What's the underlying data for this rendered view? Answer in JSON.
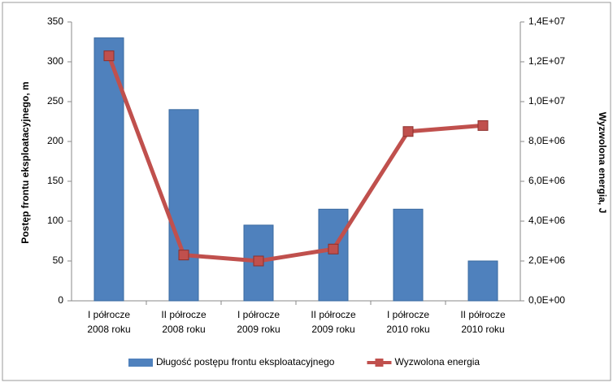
{
  "chart_data": {
    "type": "bar",
    "categories": [
      [
        "I półrocze",
        "2008 roku"
      ],
      [
        "II półrocze",
        "2008 roku"
      ],
      [
        "I półrocze",
        "2009 roku"
      ],
      [
        "II półrocze",
        "2009 roku"
      ],
      [
        "I półrocze",
        "2010 roku"
      ],
      [
        "II półrocze",
        "2010 roku"
      ]
    ],
    "series": [
      {
        "name": "Długość postępu frontu eksploatacyjnego",
        "color": "#4f81bd",
        "type": "bar",
        "axis": "y",
        "values": [
          330,
          240,
          95,
          115,
          115,
          50
        ]
      },
      {
        "name": "Wyzwolona energia",
        "color": "#c0504d",
        "type": "line",
        "axis": "y2",
        "values": [
          12300000,
          2300000,
          2000000,
          2600000,
          8500000,
          8800000
        ]
      }
    ],
    "y_label": "Postęp frontu eksploatacyjnego, m",
    "y2_label": "Wyzwolona energia, J",
    "ylim": [
      0,
      350
    ],
    "yticks": [
      0,
      50,
      100,
      150,
      200,
      250,
      300,
      350
    ],
    "y2lim": [
      0,
      14000000
    ],
    "y2ticks": [
      {
        "value": 0,
        "label": "0,0E+00"
      },
      {
        "value": 2000000,
        "label": "2,0E+06"
      },
      {
        "value": 4000000,
        "label": "4,0E+06"
      },
      {
        "value": 6000000,
        "label": "6,0E+06"
      },
      {
        "value": 8000000,
        "label": "8,0E+06"
      },
      {
        "value": 10000000,
        "label": "1,0E+07"
      },
      {
        "value": 12000000,
        "label": "1,2E+07"
      },
      {
        "value": 14000000,
        "label": "1,4E+07"
      }
    ],
    "grid": false,
    "legend": "bottom"
  }
}
